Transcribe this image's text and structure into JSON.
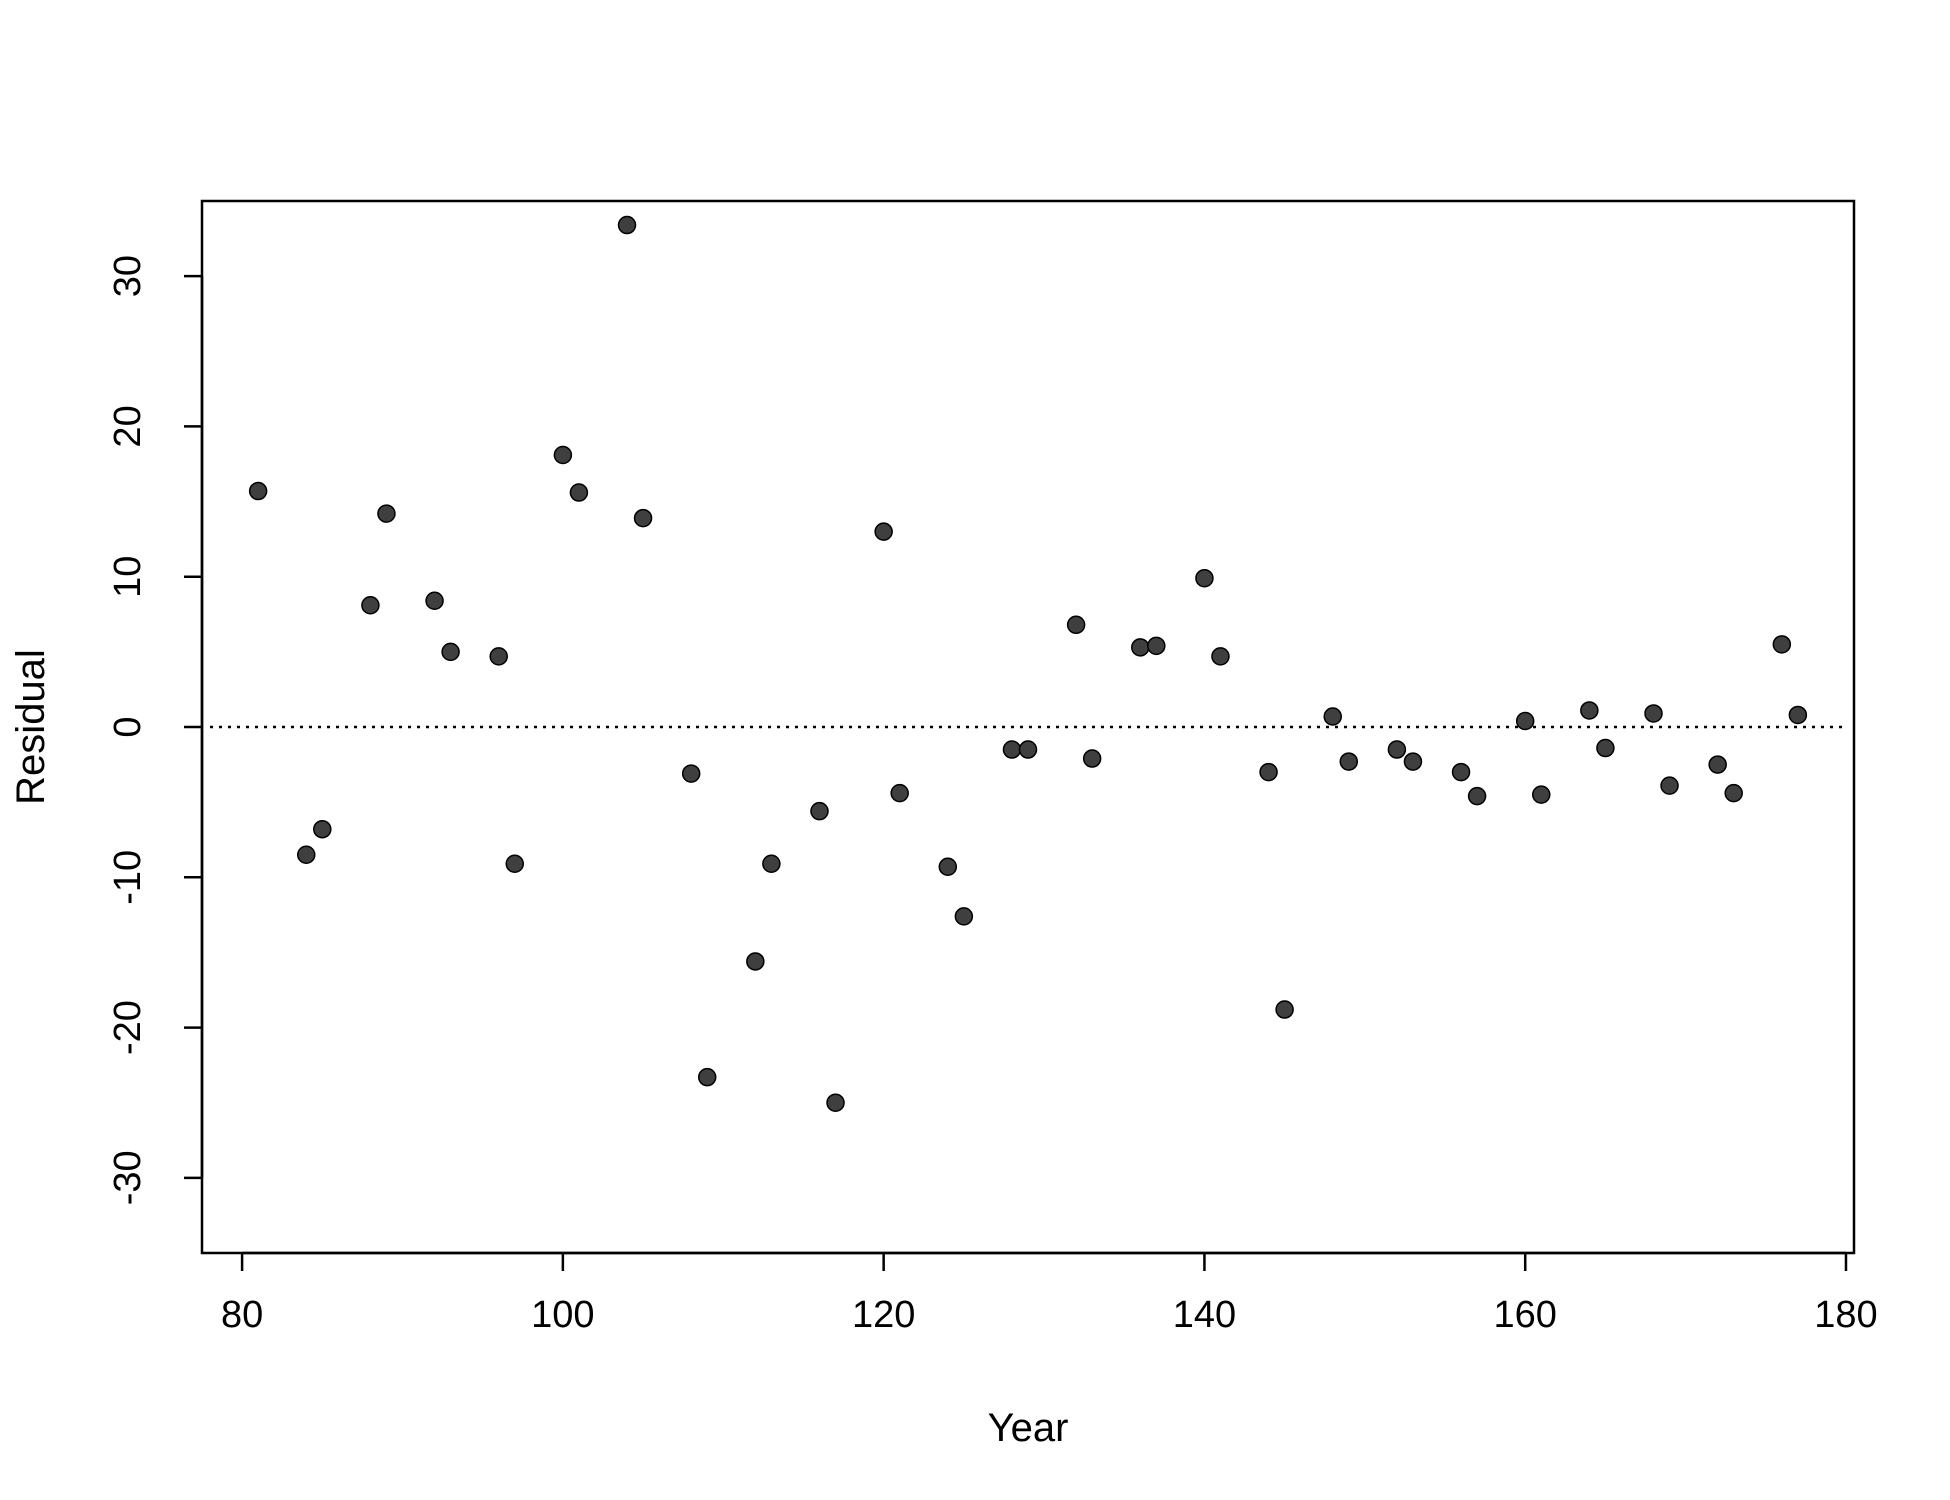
{
  "chart_data": {
    "type": "scatter",
    "xlabel": "Year",
    "ylabel": "Residual",
    "xlim": [
      77.5,
      180.5
    ],
    "ylim": [
      -35,
      35
    ],
    "xticks": [
      80,
      100,
      120,
      140,
      160,
      180
    ],
    "yticks": [
      -30,
      -20,
      -10,
      0,
      10,
      20,
      30
    ],
    "grid": false,
    "reference_line": {
      "y": 0,
      "style": "dotted"
    },
    "colors": {
      "points": "#3f3f3f",
      "axes": "#000000"
    },
    "series": [
      {
        "points": [
          [
            81,
            15.7
          ],
          [
            84,
            -8.5
          ],
          [
            85,
            -6.8
          ],
          [
            88,
            8.1
          ],
          [
            89,
            14.2
          ],
          [
            92,
            8.4
          ],
          [
            93,
            5.0
          ],
          [
            96,
            4.7
          ],
          [
            97,
            -9.1
          ],
          [
            100,
            18.1
          ],
          [
            101,
            15.6
          ],
          [
            104,
            33.4
          ],
          [
            105,
            13.9
          ],
          [
            108,
            -3.1
          ],
          [
            109,
            -23.3
          ],
          [
            112,
            -15.6
          ],
          [
            113,
            -9.1
          ],
          [
            116,
            -5.6
          ],
          [
            117,
            -25.0
          ],
          [
            120,
            13.0
          ],
          [
            121,
            -4.4
          ],
          [
            124,
            -9.3
          ],
          [
            125,
            -12.6
          ],
          [
            128,
            -1.5
          ],
          [
            129,
            -1.5
          ],
          [
            132,
            6.8
          ],
          [
            133,
            -2.1
          ],
          [
            136,
            5.3
          ],
          [
            137,
            5.4
          ],
          [
            140,
            9.9
          ],
          [
            141,
            4.7
          ],
          [
            144,
            -3.0
          ],
          [
            145,
            -18.8
          ],
          [
            148,
            0.7
          ],
          [
            149,
            -2.3
          ],
          [
            152,
            -1.5
          ],
          [
            153,
            -2.3
          ],
          [
            156,
            -3.0
          ],
          [
            157,
            -4.6
          ],
          [
            160,
            0.4
          ],
          [
            161,
            -4.5
          ],
          [
            164,
            1.1
          ],
          [
            165,
            -1.4
          ],
          [
            168,
            0.9
          ],
          [
            169,
            -3.9
          ],
          [
            172,
            -2.5
          ],
          [
            173,
            -4.4
          ],
          [
            176,
            5.5
          ],
          [
            177,
            0.8
          ]
        ]
      }
    ]
  }
}
